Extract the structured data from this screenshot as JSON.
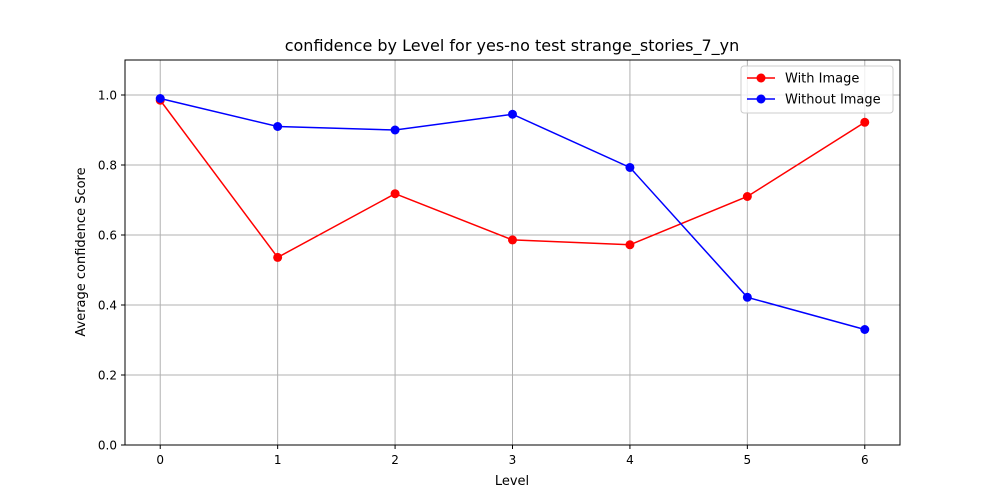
{
  "chart_data": {
    "type": "line",
    "title": "confidence by Level for yes-no test strange_stories_7_yn",
    "xlabel": "Level",
    "ylabel": "Average confidence Score",
    "x": [
      0,
      1,
      2,
      3,
      4,
      5,
      6
    ],
    "x_tick_labels": [
      "0",
      "1",
      "2",
      "3",
      "4",
      "5",
      "6"
    ],
    "y_ticks": [
      0.0,
      0.2,
      0.4,
      0.6,
      0.8,
      1.0
    ],
    "y_tick_labels": [
      "0.0",
      "0.2",
      "0.4",
      "0.6",
      "0.8",
      "1.0"
    ],
    "xlim": [
      -0.3,
      6.3
    ],
    "ylim": [
      0,
      1.1
    ],
    "grid": true,
    "legend_position": "top-right",
    "series": [
      {
        "name": "With Image",
        "color": "#ff0000",
        "marker": "circle",
        "values": [
          0.985,
          0.536,
          0.718,
          0.586,
          0.572,
          0.71,
          0.922
        ]
      },
      {
        "name": "Without Image",
        "color": "#0000ff",
        "marker": "circle",
        "values": [
          0.99,
          0.91,
          0.9,
          0.945,
          0.793,
          0.422,
          0.33
        ]
      }
    ]
  }
}
